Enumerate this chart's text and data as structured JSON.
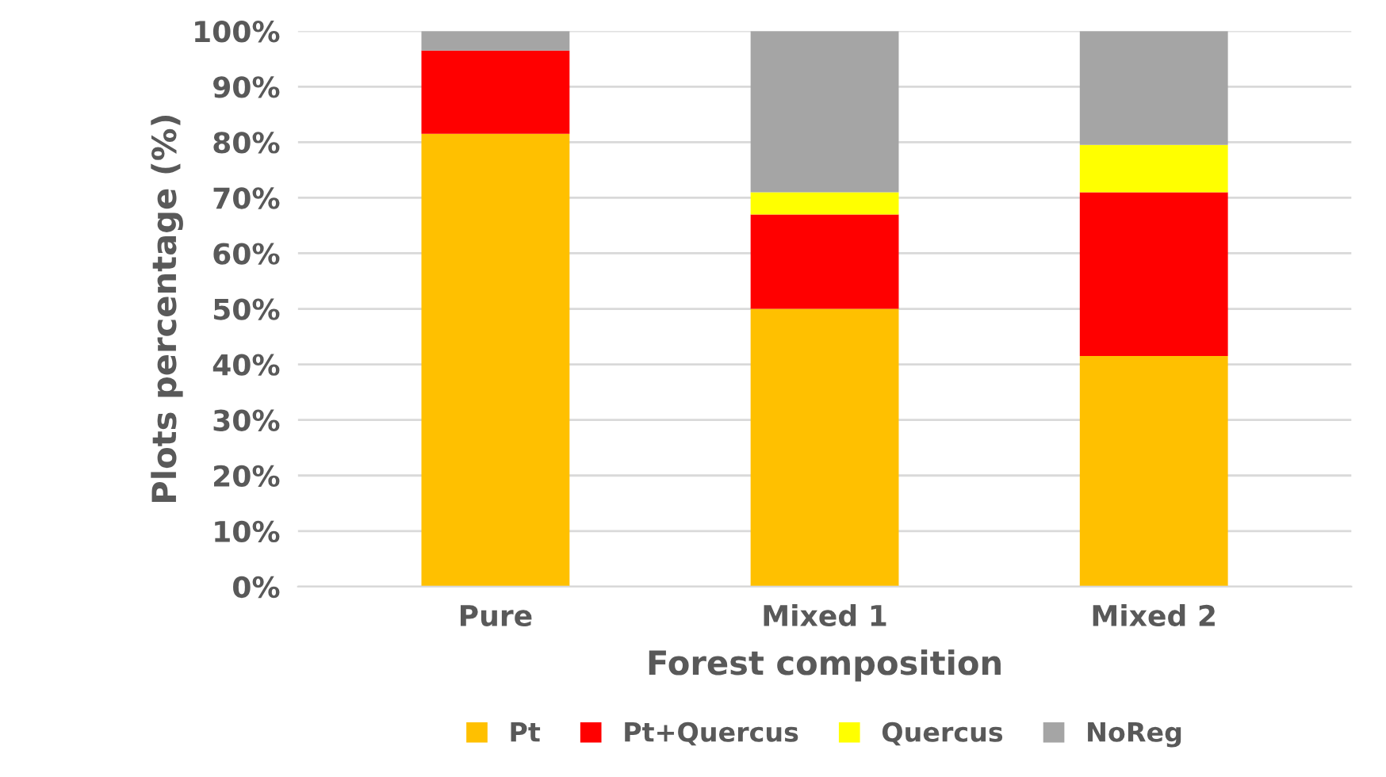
{
  "chart_data": {
    "type": "bar",
    "stacked": true,
    "xlabel": "Forest composition",
    "ylabel": "Plots percentage (%)",
    "categories": [
      "Pure",
      "Mixed 1",
      "Mixed 2"
    ],
    "series": [
      {
        "name": "Pt",
        "color": "#ffc000",
        "values": [
          81.5,
          50,
          41.5
        ]
      },
      {
        "name": "Pt+Quercus",
        "color": "#ff0000",
        "values": [
          15,
          17,
          29.5
        ]
      },
      {
        "name": "Quercus",
        "color": "#ffff00",
        "values": [
          0,
          4,
          8.5
        ]
      },
      {
        "name": "NoReg",
        "color": "#a5a5a5",
        "values": [
          3.5,
          29,
          20.5
        ]
      }
    ],
    "ylim": [
      0,
      100
    ],
    "yticks": [
      {
        "value": 0,
        "label": "0%"
      },
      {
        "value": 10,
        "label": "10%"
      },
      {
        "value": 20,
        "label": "20%"
      },
      {
        "value": 30,
        "label": "30%"
      },
      {
        "value": 40,
        "label": "40%"
      },
      {
        "value": 50,
        "label": "50%"
      },
      {
        "value": 60,
        "label": "60%"
      },
      {
        "value": 70,
        "label": "70%"
      },
      {
        "value": 80,
        "label": "80%"
      },
      {
        "value": 90,
        "label": "90%"
      },
      {
        "value": 100,
        "label": "100%"
      }
    ],
    "grid": "y",
    "legend": "bottom"
  }
}
